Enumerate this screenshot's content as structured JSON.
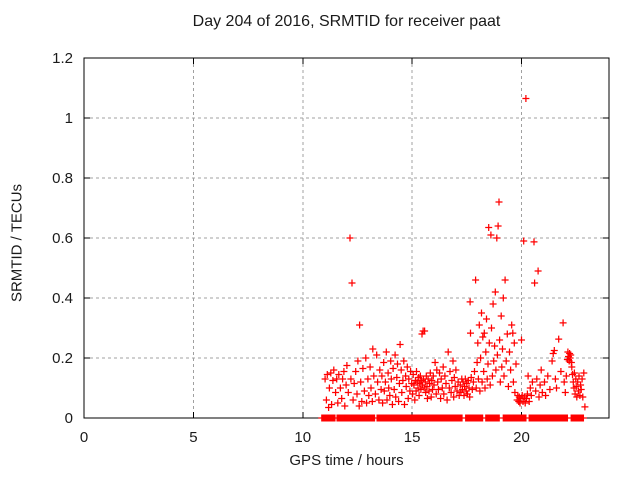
{
  "page": {
    "background": "#ffffff"
  },
  "chart_data": {
    "type": "scatter",
    "title": "Day 204 of 2016, SRMTID for receiver paat",
    "xlabel": "GPS time / hours",
    "ylabel": "SRMTID / TECUs",
    "xlim": [
      0,
      24
    ],
    "ylim": [
      0,
      1.2
    ],
    "xticks": [
      0,
      5,
      10,
      15,
      20
    ],
    "xtick_labels": [
      "0",
      "5",
      "10",
      "15",
      "20"
    ],
    "yticks": [
      0,
      0.2,
      0.4,
      0.6,
      0.8,
      1,
      1.2
    ],
    "ytick_labels": [
      "0",
      "0.2",
      "0.4",
      "0.6",
      "0.8",
      "1",
      "1.2"
    ],
    "grid": true,
    "grid_color": "#a0a0a0",
    "border_color": "#000000",
    "marker": "plus",
    "marker_color": "#ff0000",
    "legend": "none",
    "zero_band_segments": [
      [
        10.87,
        11.47
      ],
      [
        11.57,
        13.28
      ],
      [
        13.4,
        17.28
      ],
      [
        17.45,
        18.22
      ],
      [
        18.37,
        18.98
      ],
      [
        19.17,
        20.2
      ],
      [
        20.35,
        22.1
      ],
      [
        22.27,
        22.83
      ]
    ],
    "series": [
      {
        "name": "SRMTID",
        "points": [
          [
            11.02,
            0.13
          ],
          [
            11.08,
            0.06
          ],
          [
            11.12,
            0.145
          ],
          [
            11.18,
            0.035
          ],
          [
            11.22,
            0.1
          ],
          [
            11.28,
            0.15
          ],
          [
            11.32,
            0.045
          ],
          [
            11.38,
            0.125
          ],
          [
            11.42,
            0.16
          ],
          [
            11.5,
            0.085
          ],
          [
            11.55,
            0.13
          ],
          [
            11.6,
            0.05
          ],
          [
            11.65,
            0.145
          ],
          [
            11.72,
            0.1
          ],
          [
            11.78,
            0.065
          ],
          [
            11.82,
            0.13
          ],
          [
            11.88,
            0.155
          ],
          [
            11.92,
            0.04
          ],
          [
            11.98,
            0.11
          ],
          [
            12.02,
            0.175
          ],
          [
            12.08,
            0.085
          ],
          [
            12.16,
            0.6
          ],
          [
            12.2,
            0.13
          ],
          [
            12.25,
            0.45
          ],
          [
            12.3,
            0.06
          ],
          [
            12.35,
            0.115
          ],
          [
            12.42,
            0.155
          ],
          [
            12.48,
            0.08
          ],
          [
            12.52,
            0.19
          ],
          [
            12.58,
            0.04
          ],
          [
            12.6,
            0.31
          ],
          [
            12.65,
            0.12
          ],
          [
            12.7,
            0.055
          ],
          [
            12.75,
            0.165
          ],
          [
            12.82,
            0.09
          ],
          [
            12.88,
            0.2
          ],
          [
            12.92,
            0.05
          ],
          [
            12.98,
            0.13
          ],
          [
            13.02,
            0.075
          ],
          [
            13.08,
            0.17
          ],
          [
            13.12,
            0.1
          ],
          [
            13.18,
            0.055
          ],
          [
            13.2,
            0.23
          ],
          [
            13.25,
            0.14
          ],
          [
            13.32,
            0.08
          ],
          [
            13.38,
            0.21
          ],
          [
            13.42,
            0.12
          ],
          [
            13.48,
            0.06
          ],
          [
            13.52,
            0.16
          ],
          [
            13.58,
            0.095
          ],
          [
            13.62,
            0.14
          ],
          [
            13.65,
            0.05
          ],
          [
            13.7,
            0.185
          ],
          [
            13.73,
            0.09
          ],
          [
            13.78,
            0.12
          ],
          [
            13.82,
            0.22
          ],
          [
            13.85,
            0.06
          ],
          [
            13.9,
            0.15
          ],
          [
            13.93,
            0.1
          ],
          [
            13.98,
            0.075
          ],
          [
            14.02,
            0.19
          ],
          [
            14.05,
            0.13
          ],
          [
            14.1,
            0.045
          ],
          [
            14.13,
            0.165
          ],
          [
            14.18,
            0.095
          ],
          [
            14.22,
            0.21
          ],
          [
            14.25,
            0.07
          ],
          [
            14.3,
            0.135
          ],
          [
            14.33,
            0.18
          ],
          [
            14.38,
            0.055
          ],
          [
            14.42,
            0.115
          ],
          [
            14.45,
            0.245
          ],
          [
            14.5,
            0.16
          ],
          [
            14.53,
            0.085
          ],
          [
            14.58,
            0.125
          ],
          [
            14.62,
            0.19
          ],
          [
            14.65,
            0.045
          ],
          [
            14.7,
            0.14
          ],
          [
            14.73,
            0.105
          ],
          [
            14.78,
            0.17
          ],
          [
            14.82,
            0.065
          ],
          [
            14.85,
            0.13
          ],
          [
            14.9,
            0.09
          ],
          [
            14.93,
            0.155
          ],
          [
            14.98,
            0.115
          ],
          [
            15.02,
            0.08
          ],
          [
            15.05,
            0.145
          ],
          [
            15.08,
            0.11
          ],
          [
            15.12,
            0.06
          ],
          [
            15.15,
            0.125
          ],
          [
            15.18,
            0.09
          ],
          [
            15.2,
            0.155
          ],
          [
            15.23,
            0.12
          ],
          [
            15.27,
            0.1
          ],
          [
            15.3,
            0.135
          ],
          [
            15.32,
            0.075
          ],
          [
            15.35,
            0.115
          ],
          [
            15.38,
            0.14
          ],
          [
            15.4,
            0.095
          ],
          [
            15.42,
            0.125
          ],
          [
            15.45,
            0.28
          ],
          [
            15.47,
            0.11
          ],
          [
            15.5,
            0.29
          ],
          [
            15.52,
            0.13
          ],
          [
            15.55,
            0.1
          ],
          [
            15.57,
            0.29
          ],
          [
            15.6,
            0.12
          ],
          [
            15.62,
            0.085
          ],
          [
            15.65,
            0.14
          ],
          [
            15.68,
            0.105
          ],
          [
            15.7,
            0.065
          ],
          [
            15.73,
            0.13
          ],
          [
            15.77,
            0.09
          ],
          [
            15.8,
            0.115
          ],
          [
            15.83,
            0.15
          ],
          [
            15.87,
            0.07
          ],
          [
            15.9,
            0.125
          ],
          [
            15.93,
            0.095
          ],
          [
            15.97,
            0.14
          ],
          [
            16.0,
            0.11
          ],
          [
            16.05,
            0.185
          ],
          [
            16.1,
            0.08
          ],
          [
            16.13,
            0.16
          ],
          [
            16.17,
            0.12
          ],
          [
            16.2,
            0.095
          ],
          [
            16.25,
            0.15
          ],
          [
            16.3,
            0.065
          ],
          [
            16.33,
            0.13
          ],
          [
            16.38,
            0.1
          ],
          [
            16.42,
            0.17
          ],
          [
            16.45,
            0.08
          ],
          [
            16.5,
            0.14
          ],
          [
            16.55,
            0.115
          ],
          [
            16.6,
            0.06
          ],
          [
            16.65,
            0.22
          ],
          [
            16.7,
            0.1
          ],
          [
            16.73,
            0.155
          ],
          [
            16.78,
            0.085
          ],
          [
            16.82,
            0.125
          ],
          [
            16.87,
            0.19
          ],
          [
            16.9,
            0.07
          ],
          [
            16.93,
            0.135
          ],
          [
            16.97,
            0.105
          ],
          [
            17.0,
            0.16
          ],
          [
            17.05,
            0.09
          ],
          [
            17.1,
            0.12
          ],
          [
            17.15,
            0.075
          ],
          [
            17.2,
            0.11
          ],
          [
            17.23,
            0.085
          ],
          [
            17.27,
            0.13
          ],
          [
            17.3,
            0.095
          ],
          [
            17.33,
            0.12
          ],
          [
            17.37,
            0.075
          ],
          [
            17.4,
            0.105
          ],
          [
            17.43,
            0.13
          ],
          [
            17.47,
            0.09
          ],
          [
            17.5,
            0.115
          ],
          [
            17.53,
            0.08
          ],
          [
            17.57,
            0.125
          ],
          [
            17.6,
            0.1
          ],
          [
            17.63,
            0.07
          ],
          [
            17.65,
            0.387
          ],
          [
            17.67,
            0.283
          ],
          [
            17.7,
            0.135
          ],
          [
            17.75,
            0.095
          ],
          [
            17.8,
            0.12
          ],
          [
            17.85,
            0.155
          ],
          [
            17.9,
            0.46
          ],
          [
            17.93,
            0.1
          ],
          [
            17.97,
            0.185
          ],
          [
            18.0,
            0.25
          ],
          [
            18.03,
            0.13
          ],
          [
            18.07,
            0.31
          ],
          [
            18.1,
            0.09
          ],
          [
            18.13,
            0.2
          ],
          [
            18.17,
            0.35
          ],
          [
            18.2,
            0.12
          ],
          [
            18.23,
            0.27
          ],
          [
            18.27,
            0.155
          ],
          [
            18.3,
            0.283
          ],
          [
            18.33,
            0.1
          ],
          [
            18.37,
            0.22
          ],
          [
            18.4,
            0.33
          ],
          [
            18.43,
            0.13
          ],
          [
            18.47,
            0.18
          ],
          [
            18.5,
            0.635
          ],
          [
            18.53,
            0.25
          ],
          [
            18.57,
            0.11
          ],
          [
            18.6,
            0.61
          ],
          [
            18.63,
            0.3
          ],
          [
            18.67,
            0.14
          ],
          [
            18.7,
            0.38
          ],
          [
            18.73,
            0.19
          ],
          [
            18.77,
            0.24
          ],
          [
            18.8,
            0.42
          ],
          [
            18.83,
            0.16
          ],
          [
            18.87,
            0.6
          ],
          [
            18.9,
            0.21
          ],
          [
            18.93,
            0.64
          ],
          [
            18.97,
            0.72
          ],
          [
            19.0,
            0.26
          ],
          [
            19.03,
            0.12
          ],
          [
            19.07,
            0.34
          ],
          [
            19.1,
            0.17
          ],
          [
            19.13,
            0.23
          ],
          [
            19.17,
            0.4
          ],
          [
            19.2,
            0.14
          ],
          [
            19.25,
            0.46
          ],
          [
            19.3,
            0.19
          ],
          [
            19.35,
            0.28
          ],
          [
            19.4,
            0.105
          ],
          [
            19.45,
            0.22
          ],
          [
            19.5,
            0.16
          ],
          [
            19.55,
            0.31
          ],
          [
            19.6,
            0.283
          ],
          [
            19.63,
            0.12
          ],
          [
            19.67,
            0.25
          ],
          [
            19.7,
            0.085
          ],
          [
            19.75,
            0.18
          ],
          [
            19.8,
            0.06
          ],
          [
            19.83,
            0.075
          ],
          [
            19.87,
            0.055
          ],
          [
            19.9,
            0.07
          ],
          [
            19.93,
            0.05
          ],
          [
            19.97,
            0.065
          ],
          [
            20.0,
            0.26
          ],
          [
            20.03,
            0.075
          ],
          [
            20.07,
            0.055
          ],
          [
            20.1,
            0.59
          ],
          [
            20.13,
            0.07
          ],
          [
            20.17,
            0.05
          ],
          [
            20.2,
            1.065
          ],
          [
            20.23,
            0.065
          ],
          [
            20.27,
            0.08
          ],
          [
            20.3,
            0.14
          ],
          [
            20.35,
            0.055
          ],
          [
            20.4,
            0.1
          ],
          [
            20.45,
            0.075
          ],
          [
            20.5,
            0.12
          ],
          [
            20.57,
            0.587
          ],
          [
            20.6,
            0.45
          ],
          [
            20.65,
            0.09
          ],
          [
            20.7,
            0.13
          ],
          [
            20.76,
            0.49
          ],
          [
            20.8,
            0.07
          ],
          [
            20.85,
            0.11
          ],
          [
            20.9,
            0.16
          ],
          [
            20.95,
            0.085
          ],
          [
            21.05,
            0.12
          ],
          [
            21.1,
            0.075
          ],
          [
            21.2,
            0.14
          ],
          [
            21.3,
            0.095
          ],
          [
            21.4,
            0.19
          ],
          [
            21.45,
            0.215
          ],
          [
            21.5,
            0.225
          ],
          [
            21.55,
            0.13
          ],
          [
            21.6,
            0.1
          ],
          [
            21.7,
            0.263
          ],
          [
            21.8,
            0.155
          ],
          [
            21.9,
            0.317
          ],
          [
            21.95,
            0.12
          ],
          [
            22.0,
            0.085
          ],
          [
            22.05,
            0.14
          ],
          [
            22.1,
            0.195
          ],
          [
            22.12,
            0.22
          ],
          [
            22.15,
            0.205
          ],
          [
            22.18,
            0.19
          ],
          [
            22.2,
            0.215
          ],
          [
            22.22,
            0.2
          ],
          [
            22.25,
            0.21
          ],
          [
            22.28,
            0.185
          ],
          [
            22.3,
            0.17
          ],
          [
            22.33,
            0.145
          ],
          [
            22.37,
            0.12
          ],
          [
            22.4,
            0.1
          ],
          [
            22.42,
            0.15
          ],
          [
            22.45,
            0.08
          ],
          [
            22.48,
            0.13
          ],
          [
            22.5,
            0.105
          ],
          [
            22.53,
            0.07
          ],
          [
            22.57,
            0.12
          ],
          [
            22.6,
            0.09
          ],
          [
            22.63,
            0.14
          ],
          [
            22.67,
            0.075
          ],
          [
            22.7,
            0.11
          ],
          [
            22.73,
            0.095
          ],
          [
            22.77,
            0.13
          ],
          [
            22.8,
            0.07
          ],
          [
            22.85,
            0.15
          ],
          [
            22.9,
            0.037
          ]
        ]
      }
    ]
  }
}
